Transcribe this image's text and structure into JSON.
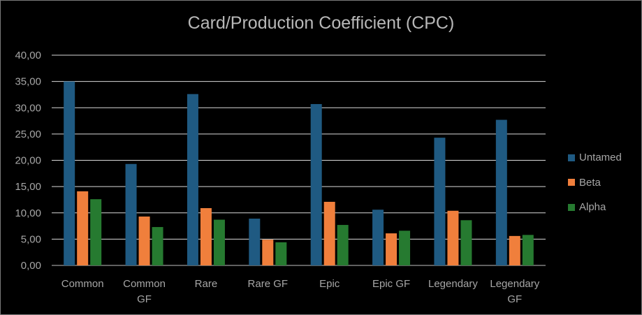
{
  "chart_data": {
    "type": "bar",
    "title": "Card/Production Coefficient (CPC)",
    "xlabel": "",
    "ylabel": "",
    "ylim": [
      0,
      40
    ],
    "yticks": [
      "0,00",
      "5,00",
      "10,00",
      "15,00",
      "20,00",
      "25,00",
      "30,00",
      "35,00",
      "40,00"
    ],
    "categories": [
      [
        "Common"
      ],
      [
        "Common",
        "GF"
      ],
      [
        "Rare"
      ],
      [
        "Rare GF"
      ],
      [
        "Epic"
      ],
      [
        "Epic GF"
      ],
      [
        "Legendary"
      ],
      [
        "Legendary",
        "GF"
      ]
    ],
    "series": [
      {
        "name": "Untamed",
        "color": "#1f5a82",
        "values": [
          35.0,
          19.3,
          32.6,
          8.9,
          30.7,
          10.6,
          24.3,
          27.7
        ]
      },
      {
        "name": "Beta",
        "color": "#f07f3c",
        "values": [
          14.1,
          9.3,
          10.9,
          4.9,
          12.1,
          6.1,
          10.4,
          5.6
        ]
      },
      {
        "name": "Alpha",
        "color": "#267a30",
        "values": [
          12.6,
          7.3,
          8.7,
          4.4,
          7.7,
          6.6,
          8.6,
          5.8
        ]
      }
    ],
    "grid": true,
    "legend_position": "right"
  }
}
